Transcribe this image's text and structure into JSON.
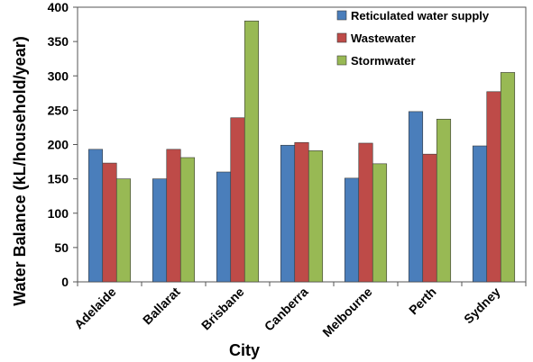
{
  "chart_data": {
    "type": "bar",
    "title": "",
    "xlabel": "City",
    "ylabel": "Water Balance (kL/household/year)",
    "ylim": [
      0,
      400
    ],
    "yticks": [
      0,
      50,
      100,
      150,
      200,
      250,
      300,
      350,
      400
    ],
    "grid": false,
    "legend_position": "top-right",
    "categories": [
      "Adelaide",
      "Ballarat",
      "Brisbane",
      "Canberra",
      "Melbourne",
      "Perth",
      "Sydney"
    ],
    "series": [
      {
        "name": "Reticulated water  supply",
        "color": "#4a7ebb",
        "values": [
          193,
          150,
          160,
          199,
          151,
          248,
          198
        ]
      },
      {
        "name": "Wastewater",
        "color": "#be4b48",
        "values": [
          173,
          193,
          239,
          203,
          202,
          186,
          277
        ]
      },
      {
        "name": "Stormwater",
        "color": "#98b954",
        "values": [
          150,
          181,
          380,
          191,
          172,
          237,
          305
        ]
      }
    ]
  }
}
